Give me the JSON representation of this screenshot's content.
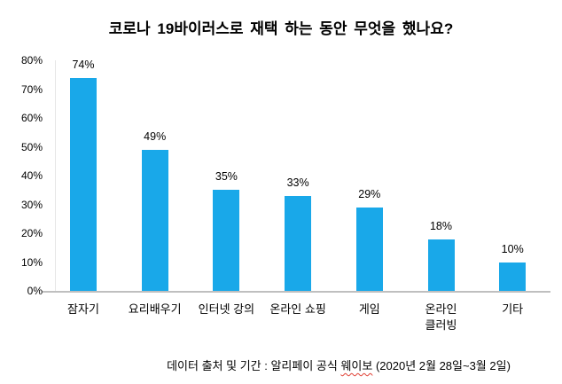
{
  "chart_data": {
    "type": "bar",
    "title": "코로나 19바이러스로 재택 하는 동안 무엇을 했나요?",
    "categories": [
      "잠자기",
      "요리배우기",
      "인터넷 강의",
      "온라인 쇼핑",
      "게임",
      "온라인\n클러빙",
      "기타"
    ],
    "values": [
      74,
      49,
      35,
      33,
      29,
      18,
      10
    ],
    "data_labels": [
      "74%",
      "49%",
      "35%",
      "33%",
      "29%",
      "18%",
      "10%"
    ],
    "ytick_labels": [
      "0%",
      "10%",
      "20%",
      "30%",
      "40%",
      "50%",
      "60%",
      "70%",
      "80%"
    ],
    "ylim": [
      0,
      80
    ],
    "xlabel": "",
    "ylabel": "",
    "grid": "off",
    "legend": "none",
    "bar_color": "#19A8E9",
    "axis_color": "#BFBFBF",
    "minor_axis_color": "#E6E6E6"
  },
  "caption": {
    "prefix": "데이터 출처 및 기간 : 알리페이 공식 ",
    "spellcheck_word": "웨이보",
    "suffix": " (2020년 2월 28일~3월 2일)",
    "squiggle_color": "#E03C31"
  }
}
